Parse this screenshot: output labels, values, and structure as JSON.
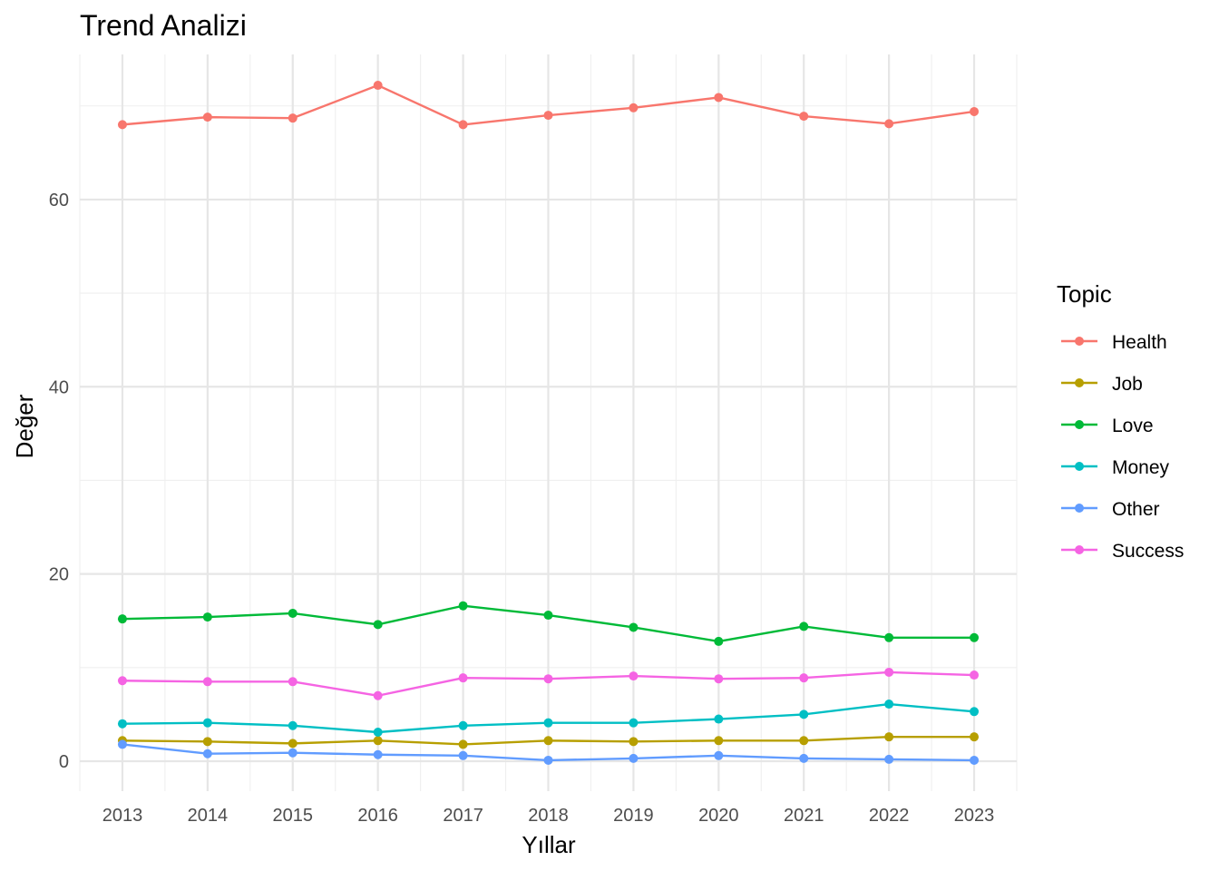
{
  "chart_data": {
    "type": "line",
    "title": "Trend Analizi",
    "xlabel": "Yıllar",
    "ylabel": "Değer",
    "x": [
      2013,
      2014,
      2015,
      2016,
      2017,
      2018,
      2019,
      2020,
      2021,
      2022,
      2023
    ],
    "xlim": [
      2012.5,
      2023.5
    ],
    "ylim": [
      -3.2,
      75.5
    ],
    "yticks": [
      0,
      20,
      40,
      60
    ],
    "grid": true,
    "legend": {
      "title": "Topic",
      "position": "right"
    },
    "series": [
      {
        "name": "Health",
        "color": "#F8766D",
        "values": [
          68.0,
          68.8,
          68.7,
          72.2,
          68.0,
          69.0,
          69.8,
          70.9,
          68.9,
          68.1,
          69.4
        ]
      },
      {
        "name": "Job",
        "color": "#B79F00",
        "values": [
          2.2,
          2.1,
          1.9,
          2.2,
          1.8,
          2.2,
          2.1,
          2.2,
          2.2,
          2.6,
          2.6
        ]
      },
      {
        "name": "Love",
        "color": "#00BA38",
        "values": [
          15.2,
          15.4,
          15.8,
          14.6,
          16.6,
          15.6,
          14.3,
          12.8,
          14.4,
          13.2,
          13.2
        ]
      },
      {
        "name": "Money",
        "color": "#00BFC4",
        "values": [
          4.0,
          4.1,
          3.8,
          3.1,
          3.8,
          4.1,
          4.1,
          4.5,
          5.0,
          6.1,
          5.3
        ]
      },
      {
        "name": "Other",
        "color": "#619CFF",
        "values": [
          1.8,
          0.8,
          0.9,
          0.7,
          0.6,
          0.1,
          0.3,
          0.6,
          0.3,
          0.2,
          0.1
        ]
      },
      {
        "name": "Success",
        "color": "#F564E3",
        "values": [
          8.6,
          8.5,
          8.5,
          7.0,
          8.9,
          8.8,
          9.1,
          8.8,
          8.9,
          9.5,
          9.2
        ]
      }
    ]
  }
}
